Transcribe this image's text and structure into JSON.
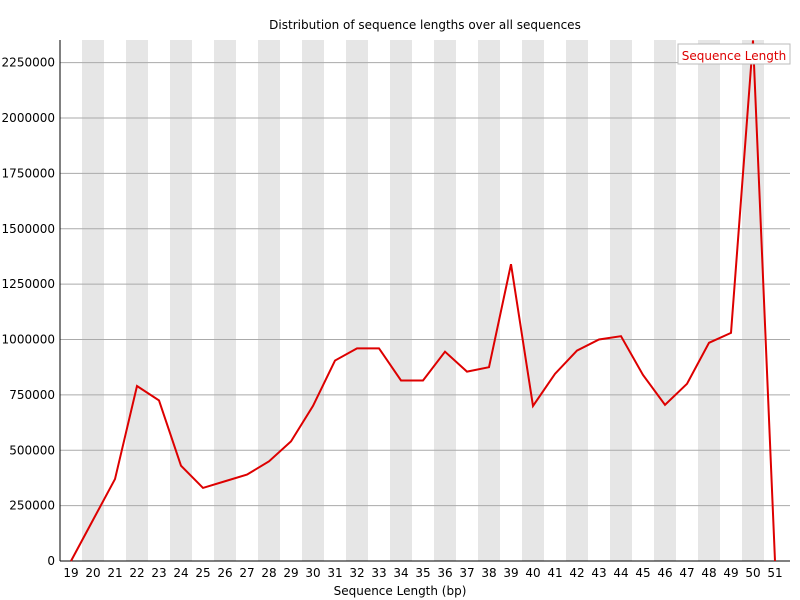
{
  "chart_data": {
    "type": "line",
    "title": "Distribution of sequence lengths over all sequences",
    "xlabel": "Sequence Length (bp)",
    "ylabel": "",
    "x": [
      19,
      20,
      21,
      22,
      23,
      24,
      25,
      26,
      27,
      28,
      29,
      30,
      31,
      32,
      33,
      34,
      35,
      36,
      37,
      38,
      39,
      40,
      41,
      42,
      43,
      44,
      45,
      46,
      47,
      48,
      49,
      50,
      51
    ],
    "series": [
      {
        "name": "Sequence Length",
        "color": "#dd0000",
        "values": [
          0,
          185000,
          370000,
          790000,
          725000,
          430000,
          330000,
          360000,
          390000,
          450000,
          540000,
          700000,
          905000,
          960000,
          960000,
          815000,
          815000,
          945000,
          855000,
          875000,
          1340000,
          700000,
          845000,
          950000,
          1000000,
          1015000,
          840000,
          705000,
          800000,
          985000,
          1030000,
          2350000,
          0
        ]
      }
    ],
    "ylim": [
      0,
      2350000
    ],
    "yticks": [
      0,
      250000,
      500000,
      750000,
      1000000,
      1250000,
      1500000,
      1750000,
      2000000,
      2250000
    ],
    "grid": true,
    "legend": "top-right",
    "band_color": "#e6e6e6",
    "grid_color": "#aaaaaa"
  }
}
